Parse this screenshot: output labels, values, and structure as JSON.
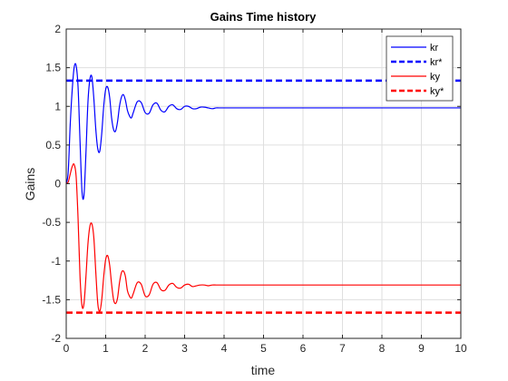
{
  "chart_data": {
    "type": "line",
    "title": "Gains Time history",
    "xlabel": "time",
    "ylabel": "Gains",
    "xlim": [
      0,
      10
    ],
    "ylim": [
      -2,
      2
    ],
    "xticks": [
      0,
      1,
      2,
      3,
      4,
      5,
      6,
      7,
      8,
      9,
      10
    ],
    "xtick_labels": [
      "0",
      "1",
      "2",
      "3",
      "4",
      "5",
      "6",
      "7",
      "8",
      "9",
      "10"
    ],
    "yticks": [
      -2,
      -1.5,
      -1,
      -0.5,
      0,
      0.5,
      1,
      1.5,
      2
    ],
    "ytick_labels": [
      "-2",
      "-1.5",
      "-1",
      "-0.5",
      "0",
      "0.5",
      "1",
      "1.5",
      "2"
    ],
    "grid": true,
    "legend_position": "top-right",
    "series": [
      {
        "name": "kr",
        "color": "#0000ff",
        "style": "solid",
        "x": [
          0,
          0.05,
          0.1,
          0.15,
          0.2,
          0.25,
          0.3,
          0.35,
          0.4,
          0.45,
          0.5,
          0.55,
          0.6,
          0.65,
          0.7,
          0.75,
          0.8,
          0.85,
          0.9,
          0.95,
          1.0,
          1.05,
          1.1,
          1.15,
          1.2,
          1.25,
          1.3,
          1.35,
          1.4,
          1.45,
          1.5,
          1.55,
          1.6,
          1.65,
          1.7,
          1.8,
          1.9,
          2.0,
          2.1,
          2.2,
          2.3,
          2.4,
          2.5,
          2.6,
          2.7,
          2.8,
          2.9,
          3.0,
          3.1,
          3.2,
          3.3,
          3.4,
          3.5,
          3.6,
          3.7,
          3.8,
          3.9,
          4.0,
          4.2,
          4.4,
          4.6,
          4.8,
          5.0,
          5.5,
          6.0,
          7.0,
          8.0,
          9.0,
          10.0
        ],
        "y": [
          0,
          0.15,
          0.75,
          1.2,
          1.5,
          1.53,
          1.25,
          0.55,
          -0.1,
          -0.15,
          0.4,
          1.05,
          1.35,
          1.38,
          1.1,
          0.7,
          0.45,
          0.42,
          0.65,
          1.0,
          1.22,
          1.25,
          1.12,
          0.85,
          0.7,
          0.68,
          0.8,
          1.0,
          1.12,
          1.15,
          1.08,
          0.95,
          0.88,
          0.85,
          0.92,
          1.06,
          1.05,
          0.92,
          0.91,
          1.02,
          1.04,
          0.95,
          0.93,
          1.0,
          1.02,
          0.97,
          0.96,
          1.0,
          1.0,
          0.97,
          0.97,
          0.99,
          0.99,
          0.98,
          0.97,
          0.98,
          0.98,
          0.98,
          0.98,
          0.98,
          0.98,
          0.98,
          0.98,
          0.98,
          0.98,
          0.98,
          0.98,
          0.98,
          0.98
        ]
      },
      {
        "name": "kr*",
        "color": "#0000ff",
        "style": "dashed",
        "x": [
          0,
          10
        ],
        "y": [
          1.333,
          1.333
        ]
      },
      {
        "name": "ky",
        "color": "#ff0000",
        "style": "solid",
        "x": [
          0,
          0.05,
          0.1,
          0.15,
          0.2,
          0.25,
          0.3,
          0.35,
          0.4,
          0.45,
          0.5,
          0.55,
          0.6,
          0.65,
          0.7,
          0.75,
          0.8,
          0.85,
          0.9,
          0.95,
          1.0,
          1.05,
          1.1,
          1.15,
          1.2,
          1.25,
          1.3,
          1.35,
          1.4,
          1.45,
          1.5,
          1.55,
          1.6,
          1.65,
          1.7,
          1.8,
          1.9,
          2.0,
          2.1,
          2.2,
          2.3,
          2.4,
          2.5,
          2.6,
          2.7,
          2.8,
          2.9,
          3.0,
          3.1,
          3.2,
          3.3,
          3.4,
          3.5,
          3.6,
          3.7,
          3.8,
          3.9,
          4.0,
          4.2,
          4.4,
          4.6,
          4.8,
          5.0,
          5.5,
          6.0,
          7.0,
          8.0,
          9.0,
          10.0
        ],
        "y": [
          0,
          0.02,
          0.12,
          0.22,
          0.25,
          0.1,
          -0.45,
          -1.2,
          -1.58,
          -1.55,
          -1.2,
          -0.78,
          -0.55,
          -0.52,
          -0.7,
          -1.15,
          -1.55,
          -1.65,
          -1.5,
          -1.2,
          -0.98,
          -0.93,
          -1.05,
          -1.3,
          -1.5,
          -1.55,
          -1.48,
          -1.28,
          -1.15,
          -1.13,
          -1.2,
          -1.38,
          -1.45,
          -1.48,
          -1.42,
          -1.28,
          -1.3,
          -1.45,
          -1.44,
          -1.3,
          -1.28,
          -1.37,
          -1.38,
          -1.31,
          -1.29,
          -1.34,
          -1.35,
          -1.31,
          -1.3,
          -1.33,
          -1.32,
          -1.31,
          -1.31,
          -1.32,
          -1.31,
          -1.31,
          -1.31,
          -1.31,
          -1.31,
          -1.31,
          -1.31,
          -1.31,
          -1.31,
          -1.31,
          -1.31,
          -1.31,
          -1.31,
          -1.31,
          -1.31
        ]
      },
      {
        "name": "ky*",
        "color": "#ff0000",
        "style": "dashed",
        "x": [
          0,
          10
        ],
        "y": [
          -1.667,
          -1.667
        ]
      }
    ]
  }
}
